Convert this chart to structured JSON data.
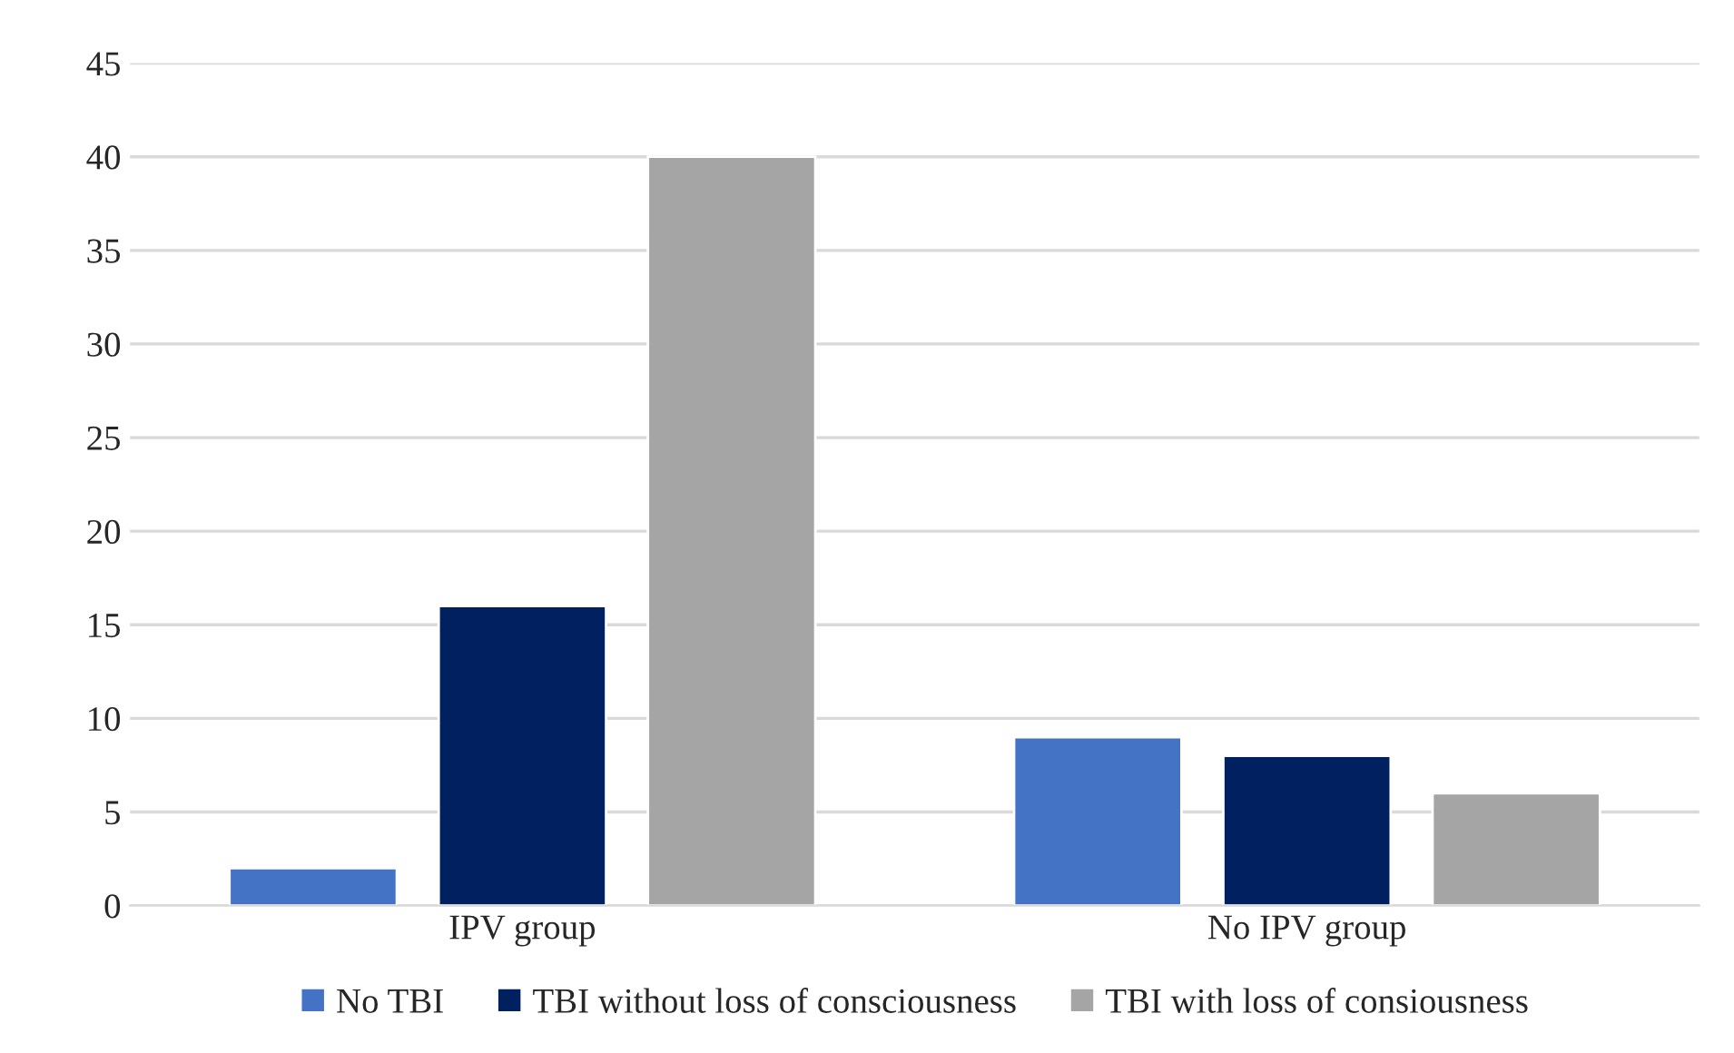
{
  "chart_data": {
    "type": "bar",
    "categories": [
      "IPV group",
      "No IPV group"
    ],
    "series": [
      {
        "name": "No TBI",
        "color": "#4472c4",
        "values": [
          2,
          9
        ]
      },
      {
        "name": "TBI without loss of consciousness",
        "color": "#002060",
        "values": [
          16,
          8
        ]
      },
      {
        "name": "TBI with loss of consiousness",
        "color": "#a5a5a5",
        "values": [
          40,
          6
        ]
      }
    ],
    "ylim": [
      0,
      45
    ],
    "yticks": [
      0,
      5,
      10,
      15,
      20,
      25,
      30,
      35,
      40,
      45
    ],
    "grid": "y",
    "legend": "bottom"
  }
}
